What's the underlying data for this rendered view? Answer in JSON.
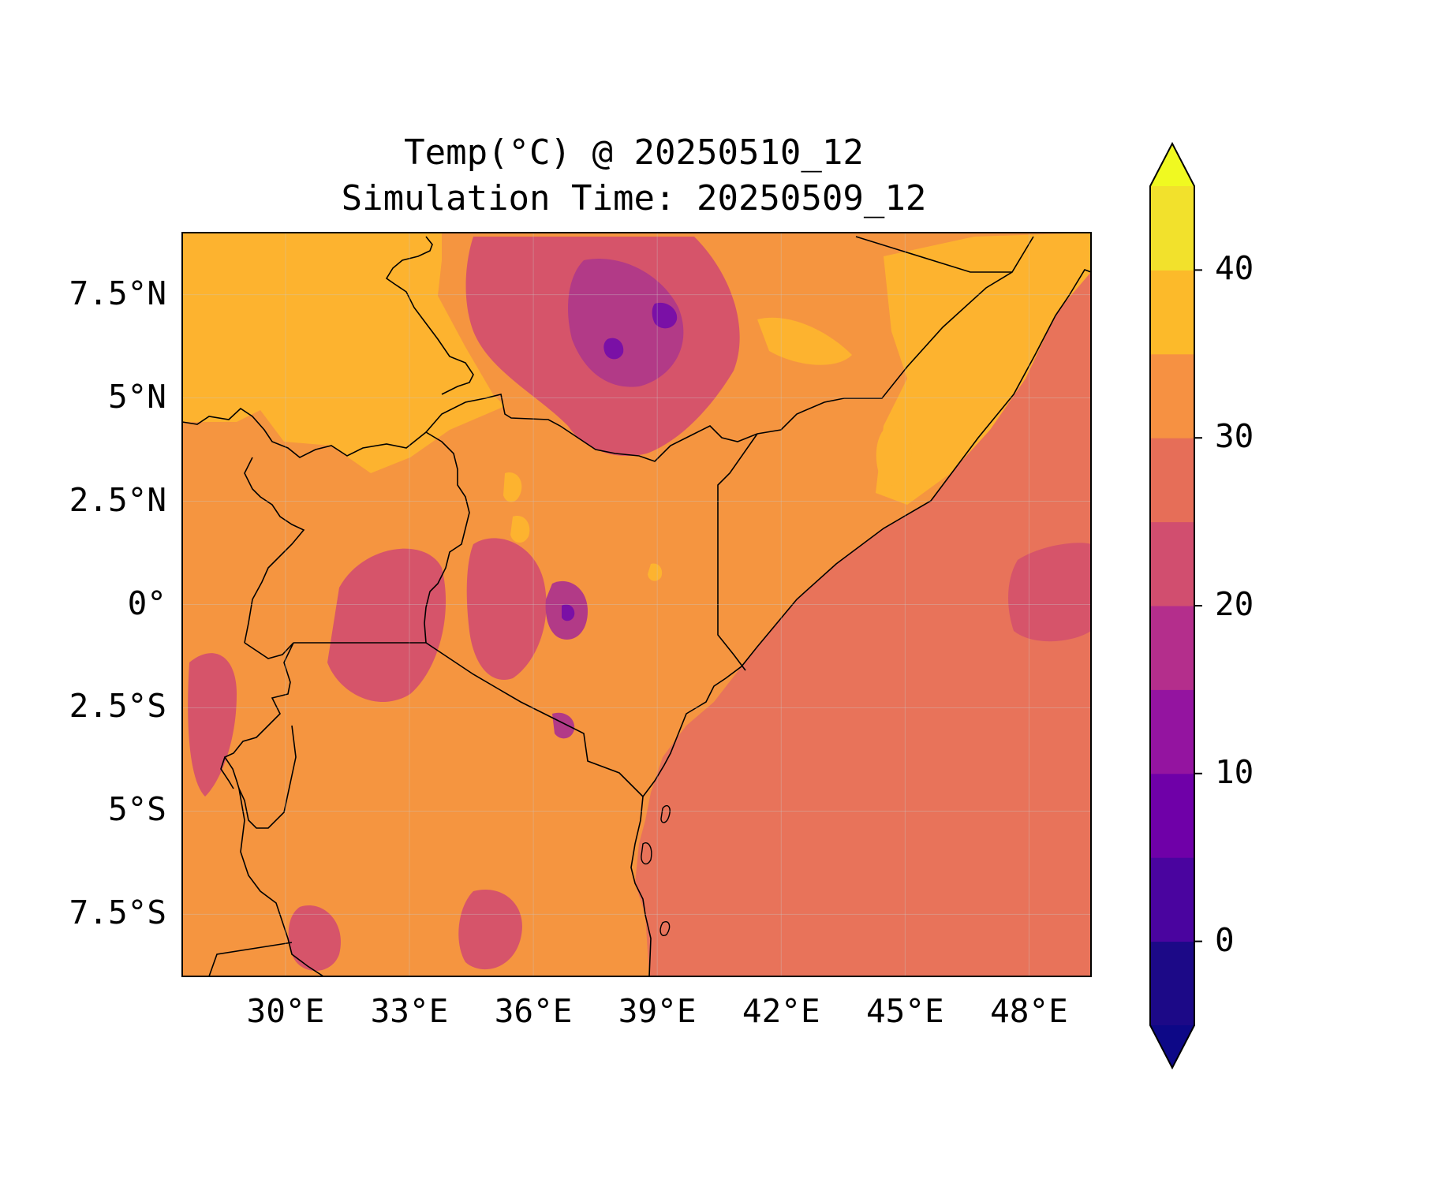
{
  "title": {
    "line1": "Temp(°C) @ 20250510_12",
    "line2": "Simulation Time: 20250509_12"
  },
  "map": {
    "region": "East Africa",
    "variable": "Temperature",
    "units": "°C",
    "lon_range": [
      27.5,
      49.5
    ],
    "lat_range": [
      -9,
      9
    ],
    "lon_ticks": [
      30,
      33,
      36,
      39,
      42,
      45,
      48
    ],
    "lon_labels": [
      "30°E",
      "33°E",
      "36°E",
      "39°E",
      "42°E",
      "45°E",
      "48°E"
    ],
    "lat_ticks": [
      7.5,
      5,
      2.5,
      0,
      -2.5,
      -5,
      -7.5
    ],
    "lat_labels": [
      "7.5°N",
      "5°N",
      "2.5°N",
      "0°",
      "2.5°S",
      "5°S",
      "7.5°S"
    ],
    "grid": true,
    "ocean_level_c": 27.5,
    "land_level_c": 32.5,
    "northwest_lowland_level_c": 37.5
  },
  "colorbar": {
    "orientation": "vertical",
    "placement": "right",
    "extend": "both",
    "levels": [
      -5,
      0,
      5,
      10,
      15,
      20,
      25,
      30,
      35,
      40,
      45
    ],
    "colors": [
      "#1c0987",
      "#4a049f",
      "#6f00a8",
      "#9414a0",
      "#b42e8c",
      "#d14e6f",
      "#e66e58",
      "#f69142",
      "#fcba2a",
      "#f2e12c"
    ],
    "under_color": "#0d0887",
    "over_color": "#f0f921",
    "tick_values": [
      0,
      10,
      20,
      30,
      40
    ],
    "tick_labels": [
      "0",
      "10",
      "20",
      "30",
      "40"
    ]
  },
  "colors": {
    "ocean": "#e8735a",
    "land": "#f59540",
    "hot": "#fdb32f",
    "cool": "#d6546a",
    "highland": "#b23a87",
    "peak": "#7a10a6",
    "border": "#000000"
  }
}
